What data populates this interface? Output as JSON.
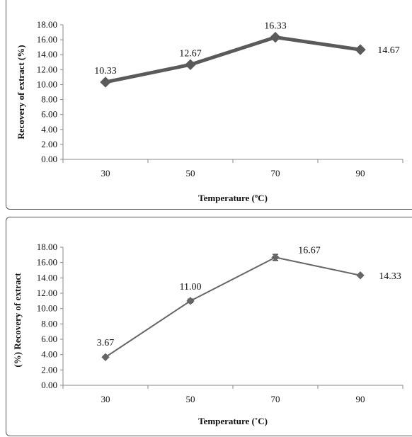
{
  "charts": [
    {
      "chart_data": {
        "type": "line",
        "title": "",
        "xlabel": "Temperature (ºC)",
        "ylabel": "Recovery of extract (%)",
        "categories": [
          "30",
          "50",
          "70",
          "90"
        ],
        "series": [
          {
            "values": [
              10.33,
              12.67,
              16.33,
              14.67
            ],
            "data_labels": [
              "10.33",
              "12.67",
              "16.33",
              "14.67"
            ],
            "marker": "diamond"
          }
        ],
        "ylim": [
          0,
          18
        ],
        "yticks": [
          "0.00",
          "2.00",
          "4.00",
          "6.00",
          "8.00",
          "10.00",
          "12.00",
          "14.00",
          "16.00",
          "18.00"
        ],
        "grid": false,
        "line_color": "#5a5a5a"
      }
    },
    {
      "chart_data": {
        "type": "line",
        "title": "",
        "xlabel": "Temperature (˚C)",
        "ylabel": "(%)  Recovery of extract",
        "categories": [
          "30",
          "50",
          "70",
          "90"
        ],
        "series": [
          {
            "values": [
              3.67,
              11.0,
              16.67,
              14.33
            ],
            "data_labels": [
              "3.67",
              "11.00",
              "16.67",
              "14.33"
            ],
            "marker": "diamond",
            "error_bars": [
              0,
              0.25,
              0.4,
              0
            ]
          }
        ],
        "ylim": [
          0,
          18
        ],
        "yticks": [
          "0.00",
          "2.00",
          "4.00",
          "6.00",
          "8.00",
          "10.00",
          "12.00",
          "14.00",
          "16.00",
          "18.00"
        ],
        "grid": false,
        "line_color": "#666666"
      }
    }
  ]
}
